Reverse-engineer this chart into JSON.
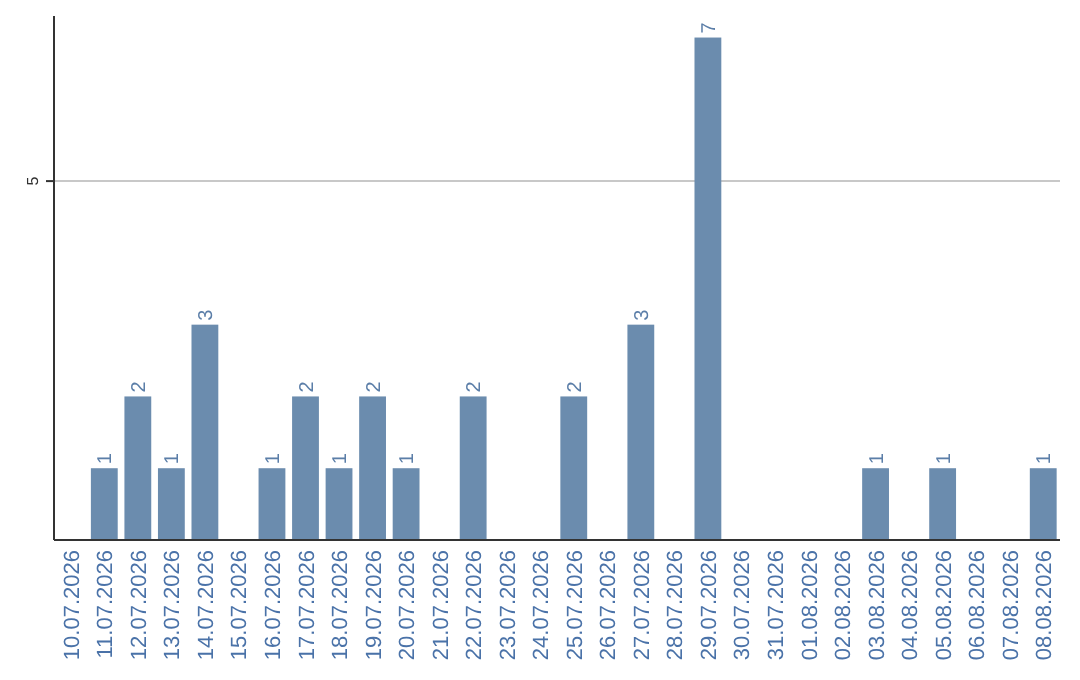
{
  "chart_data": {
    "type": "bar",
    "categories": [
      "10.07.2026",
      "11.07.2026",
      "12.07.2026",
      "13.07.2026",
      "14.07.2026",
      "15.07.2026",
      "16.07.2026",
      "17.07.2026",
      "18.07.2026",
      "19.07.2026",
      "20.07.2026",
      "21.07.2026",
      "22.07.2026",
      "23.07.2026",
      "24.07.2026",
      "25.07.2026",
      "26.07.2026",
      "27.07.2026",
      "28.07.2026",
      "29.07.2026",
      "30.07.2026",
      "31.07.2026",
      "01.08.2026",
      "02.08.2026",
      "03.08.2026",
      "04.08.2026",
      "05.08.2026",
      "06.08.2026",
      "07.08.2026",
      "08.08.2026"
    ],
    "values": [
      0,
      1,
      2,
      1,
      3,
      0,
      1,
      2,
      1,
      2,
      1,
      0,
      2,
      0,
      0,
      2,
      0,
      3,
      0,
      7,
      0,
      0,
      0,
      0,
      1,
      0,
      1,
      0,
      0,
      1
    ],
    "value_labels": [
      null,
      "1",
      "2",
      "1",
      "3",
      null,
      "1",
      "2",
      "1",
      "2",
      "1",
      null,
      "2",
      null,
      null,
      "2",
      null,
      "3",
      null,
      "7",
      null,
      null,
      null,
      null,
      "1",
      null,
      "1",
      null,
      null,
      "1"
    ],
    "color": "#6b8cae",
    "ylim": [
      0,
      7.3
    ],
    "yticks": [
      5
    ],
    "grid": "y"
  }
}
